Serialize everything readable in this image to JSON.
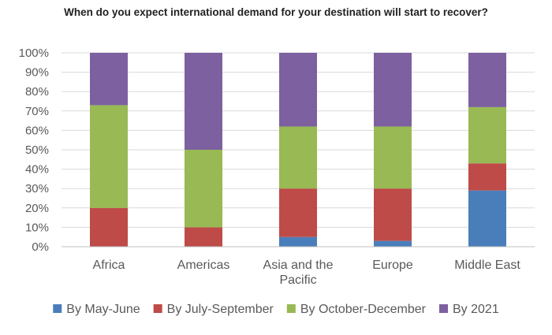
{
  "chart_data": {
    "type": "bar",
    "stacked": true,
    "title": "When do you expect international demand for your destination will start to recover?",
    "xlabel": "",
    "ylabel": "",
    "ylim": [
      0,
      100
    ],
    "yticks": [
      0,
      10,
      20,
      30,
      40,
      50,
      60,
      70,
      80,
      90,
      100
    ],
    "ytick_labels": [
      "0%",
      "10%",
      "20%",
      "30%",
      "40%",
      "50%",
      "60%",
      "70%",
      "80%",
      "90%",
      "100%"
    ],
    "grid": true,
    "legend_position": "bottom",
    "categories": [
      [
        "Africa"
      ],
      [
        "Americas"
      ],
      [
        "Asia and the",
        "Pacific"
      ],
      [
        "Europe"
      ],
      [
        "Middle East"
      ]
    ],
    "series": [
      {
        "name": "By May-June",
        "color": "#4a7ebb",
        "values": [
          0,
          0,
          5,
          3,
          29
        ]
      },
      {
        "name": "By July-September",
        "color": "#be4b48",
        "values": [
          20,
          10,
          25,
          27,
          14
        ]
      },
      {
        "name": "By October-December",
        "color": "#98b954",
        "values": [
          53,
          40,
          32,
          32,
          29
        ]
      },
      {
        "name": "By 2021",
        "color": "#7d60a0",
        "values": [
          27,
          50,
          38,
          38,
          28
        ]
      }
    ]
  }
}
